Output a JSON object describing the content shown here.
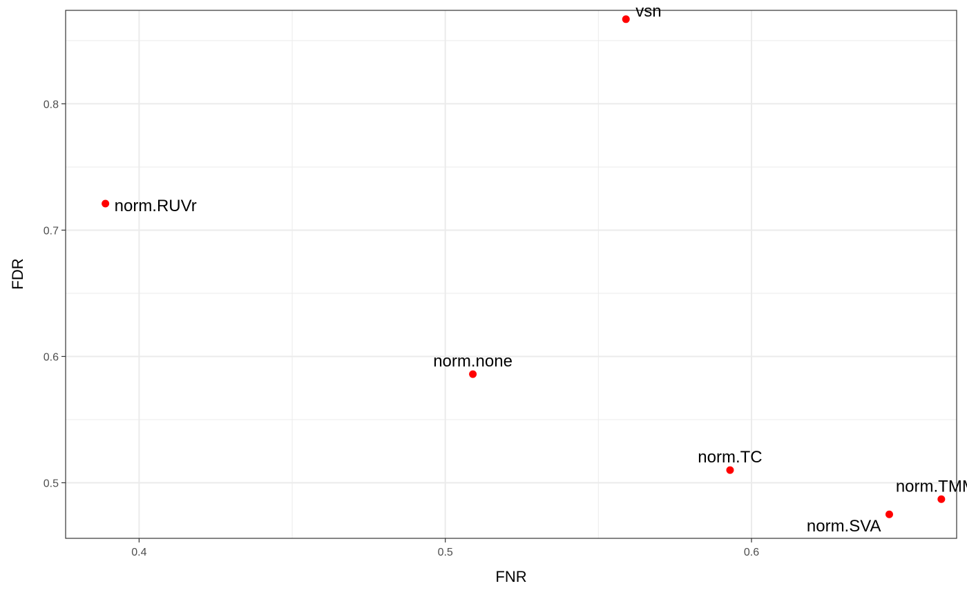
{
  "chart_data": {
    "type": "scatter",
    "xlabel": "FNR",
    "ylabel": "FDR",
    "xlim": [
      0.376,
      0.667
    ],
    "ylim": [
      0.456,
      0.874
    ],
    "x_ticks": [
      0.4,
      0.5,
      0.6
    ],
    "x_tick_labels": [
      "0.4",
      "0.5",
      "0.6"
    ],
    "y_ticks": [
      0.5,
      0.6,
      0.7,
      0.8
    ],
    "y_tick_labels": [
      "0.5",
      "0.6",
      "0.7",
      "0.8"
    ],
    "x_minor_ticks": [
      0.45,
      0.55
    ],
    "y_minor_ticks": [
      0.55,
      0.65,
      0.75,
      0.85
    ],
    "grid": true,
    "point_color": "#ff0000",
    "points": [
      {
        "label": "vsn",
        "x": 0.559,
        "y": 0.867,
        "label_pos": "top-right"
      },
      {
        "label": "norm.RUVr",
        "x": 0.389,
        "y": 0.721,
        "label_pos": "right"
      },
      {
        "label": "norm.none",
        "x": 0.509,
        "y": 0.586,
        "label_pos": "top"
      },
      {
        "label": "norm.TC",
        "x": 0.593,
        "y": 0.51,
        "label_pos": "top"
      },
      {
        "label": "norm.TMM",
        "x": 0.662,
        "y": 0.487,
        "label_pos": "top-left"
      },
      {
        "label": "norm.SVA",
        "x": 0.645,
        "y": 0.475,
        "label_pos": "bottom-left"
      }
    ]
  }
}
